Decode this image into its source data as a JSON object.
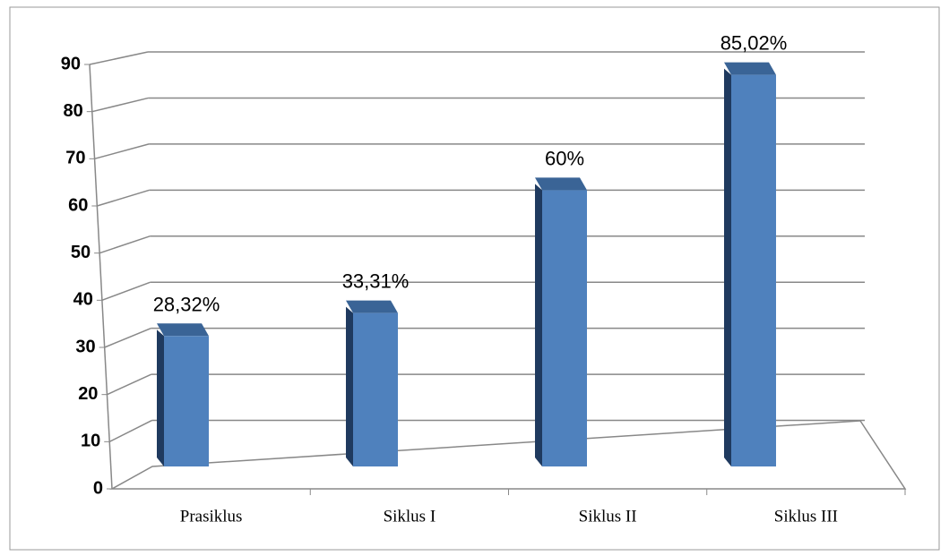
{
  "chart_data": {
    "type": "bar",
    "categories": [
      "Prasiklus",
      "Siklus I",
      "Siklus II",
      "Siklus III"
    ],
    "values": [
      28.32,
      33.31,
      60,
      85.02
    ],
    "value_labels": [
      "28,32%",
      "33,31%",
      "60%",
      "85,02%"
    ],
    "color": "#4f81bd",
    "ylim": [
      0,
      90
    ],
    "yticks": [
      0,
      10,
      20,
      30,
      40,
      50,
      60,
      70,
      80,
      90
    ],
    "grid": true
  }
}
